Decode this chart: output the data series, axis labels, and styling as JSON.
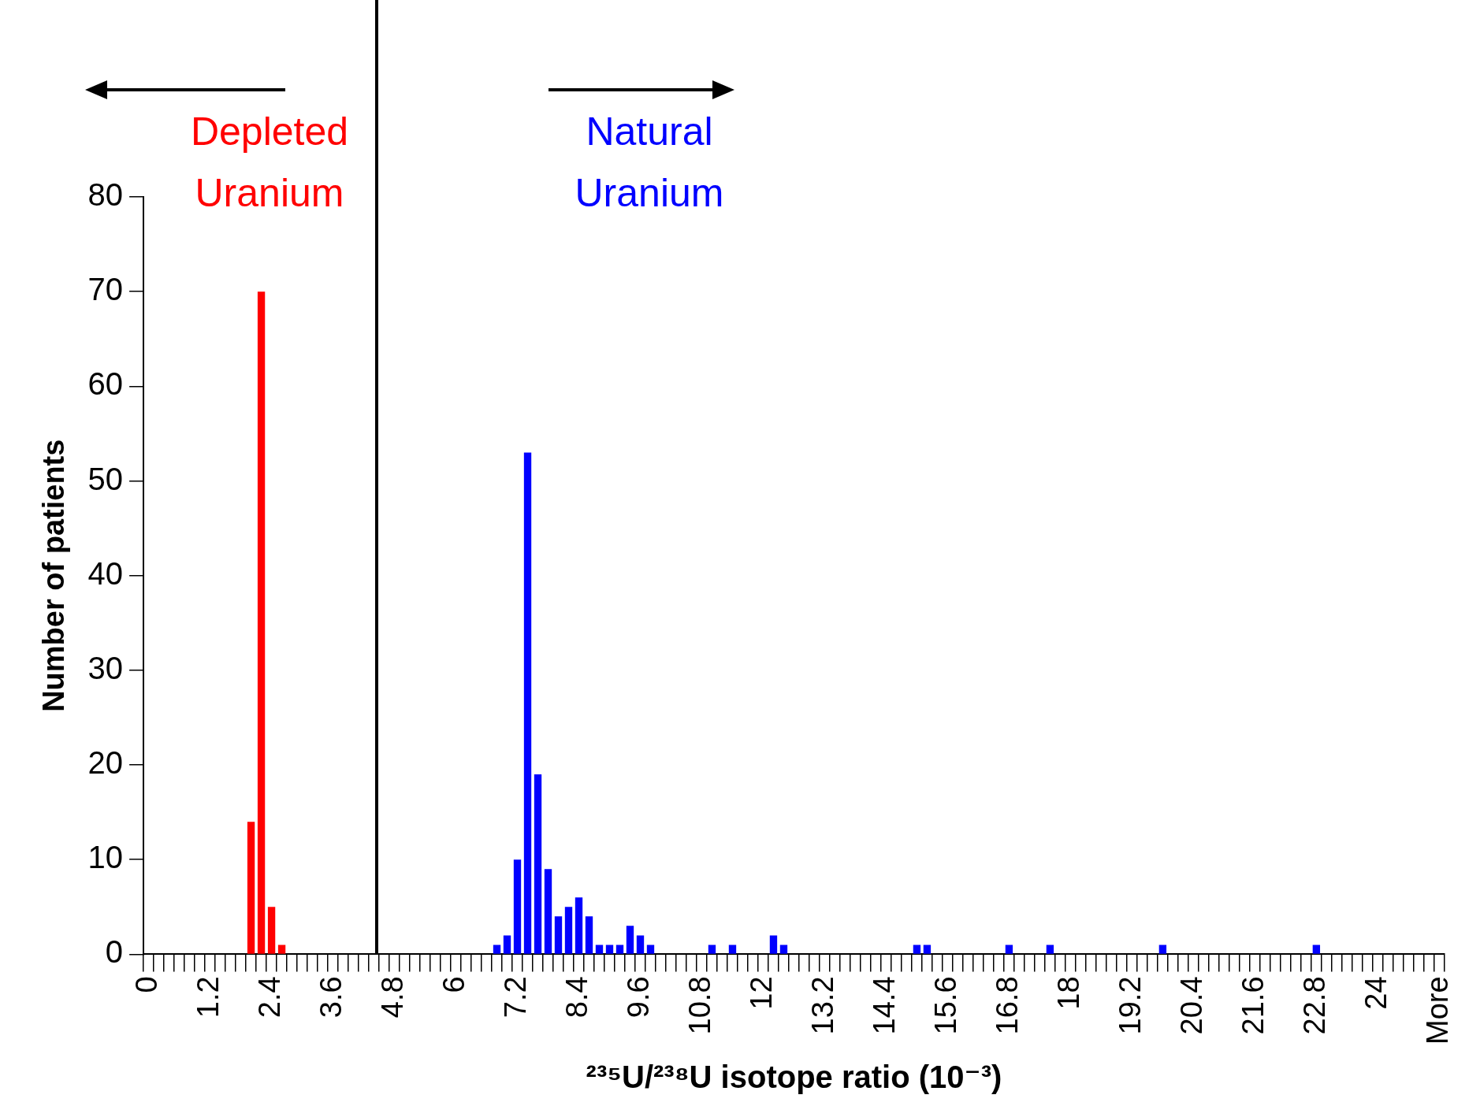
{
  "chart_data": {
    "type": "bar",
    "xlabel": "²³⁵U/²³⁸U isotope ratio (10⁻³)",
    "ylabel": "Number of patients",
    "categories": [
      "0",
      null,
      null,
      null,
      null,
      null,
      "1.2",
      null,
      null,
      null,
      null,
      null,
      "2.4",
      null,
      null,
      null,
      null,
      null,
      "3.6",
      null,
      null,
      null,
      null,
      null,
      "4.8",
      null,
      null,
      null,
      null,
      null,
      "6",
      null,
      null,
      null,
      null,
      null,
      "7.2",
      null,
      null,
      null,
      null,
      null,
      "8.4",
      null,
      null,
      null,
      null,
      null,
      "9.6",
      null,
      null,
      null,
      null,
      null,
      "10.8",
      null,
      null,
      null,
      null,
      null,
      "12",
      null,
      null,
      null,
      null,
      null,
      "13.2",
      null,
      null,
      null,
      null,
      null,
      "14.4",
      null,
      null,
      null,
      null,
      null,
      "15.6",
      null,
      null,
      null,
      null,
      null,
      "16.8",
      null,
      null,
      null,
      null,
      null,
      "18",
      null,
      null,
      null,
      null,
      null,
      "19.2",
      null,
      null,
      null,
      null,
      null,
      "20.4",
      null,
      null,
      null,
      null,
      null,
      "21.6",
      null,
      null,
      null,
      null,
      null,
      "22.8",
      null,
      null,
      null,
      null,
      null,
      "24",
      null,
      null,
      null,
      null,
      null,
      "More"
    ],
    "values": [
      0,
      0,
      0,
      0,
      0,
      0,
      0,
      0,
      0,
      0,
      14,
      70,
      5,
      1,
      0,
      0,
      0,
      0,
      0,
      0,
      0,
      0,
      0,
      0,
      0,
      0,
      0,
      0,
      0,
      0,
      0,
      0,
      0,
      0,
      1,
      2,
      10,
      53,
      19,
      9,
      4,
      5,
      6,
      4,
      1,
      1,
      1,
      3,
      2,
      1,
      0,
      0,
      0,
      0,
      0,
      1,
      0,
      1,
      0,
      0,
      0,
      2,
      1,
      0,
      0,
      0,
      0,
      0,
      0,
      0,
      0,
      0,
      0,
      0,
      0,
      1,
      1,
      0,
      0,
      0,
      0,
      0,
      0,
      0,
      1,
      0,
      0,
      0,
      1,
      0,
      0,
      0,
      0,
      0,
      0,
      0,
      0,
      0,
      0,
      1,
      0,
      0,
      0,
      0,
      0,
      0,
      0,
      0,
      0,
      0,
      0,
      0,
      0,
      0,
      1,
      0,
      0,
      0,
      0,
      0,
      0,
      0,
      0,
      0,
      0,
      0,
      0
    ],
    "colors": [
      "#ff0000",
      "#ff0000",
      "#ff0000",
      "#ff0000",
      "#ff0000",
      "#ff0000",
      "#ff0000",
      "#ff0000",
      "#ff0000",
      "#ff0000",
      "#ff0000",
      "#ff0000",
      "#ff0000",
      "#ff0000",
      "#ff0000",
      "#ff0000",
      "#ff0000",
      "#ff0000",
      "#ff0000",
      "#ff0000",
      "#ff0000",
      "#ff0000",
      "#ff0000",
      "#0000ff",
      "#0000ff",
      "#0000ff",
      "#0000ff",
      "#0000ff",
      "#0000ff",
      "#0000ff",
      "#0000ff",
      "#0000ff",
      "#0000ff",
      "#0000ff",
      "#0000ff",
      "#0000ff",
      "#0000ff",
      "#0000ff",
      "#0000ff",
      "#0000ff",
      "#0000ff",
      "#0000ff",
      "#0000ff",
      "#0000ff",
      "#0000ff",
      "#0000ff",
      "#0000ff",
      "#0000ff",
      "#0000ff",
      "#0000ff",
      "#0000ff",
      "#0000ff",
      "#0000ff",
      "#0000ff",
      "#0000ff",
      "#0000ff",
      "#0000ff",
      "#0000ff",
      "#0000ff",
      "#0000ff",
      "#0000ff",
      "#0000ff",
      "#0000ff",
      "#0000ff",
      "#0000ff",
      "#0000ff",
      "#0000ff",
      "#0000ff",
      "#0000ff",
      "#0000ff",
      "#0000ff",
      "#0000ff",
      "#0000ff",
      "#0000ff",
      "#0000ff",
      "#0000ff",
      "#0000ff",
      "#0000ff",
      "#0000ff",
      "#0000ff",
      "#0000ff",
      "#0000ff",
      "#0000ff",
      "#0000ff",
      "#0000ff",
      "#0000ff",
      "#0000ff",
      "#0000ff",
      "#0000ff",
      "#0000ff",
      "#0000ff",
      "#0000ff",
      "#0000ff",
      "#0000ff",
      "#0000ff",
      "#0000ff",
      "#0000ff",
      "#0000ff",
      "#0000ff",
      "#0000ff",
      "#0000ff",
      "#0000ff",
      "#0000ff",
      "#0000ff",
      "#0000ff",
      "#0000ff",
      "#0000ff",
      "#0000ff",
      "#0000ff",
      "#0000ff",
      "#0000ff",
      "#0000ff",
      "#0000ff",
      "#0000ff",
      "#0000ff",
      "#0000ff",
      "#0000ff",
      "#0000ff",
      "#0000ff",
      "#0000ff",
      "#0000ff",
      "#0000ff",
      "#0000ff",
      "#0000ff",
      "#0000ff",
      "#0000ff",
      "#0000ff"
    ],
    "ylim": [
      0,
      80
    ],
    "yticks": [
      0,
      10,
      20,
      30,
      40,
      50,
      60,
      70,
      80
    ],
    "annotations": [
      "Depleted Uranium",
      "Natural Uranium"
    ],
    "grid": false,
    "legend": false
  }
}
